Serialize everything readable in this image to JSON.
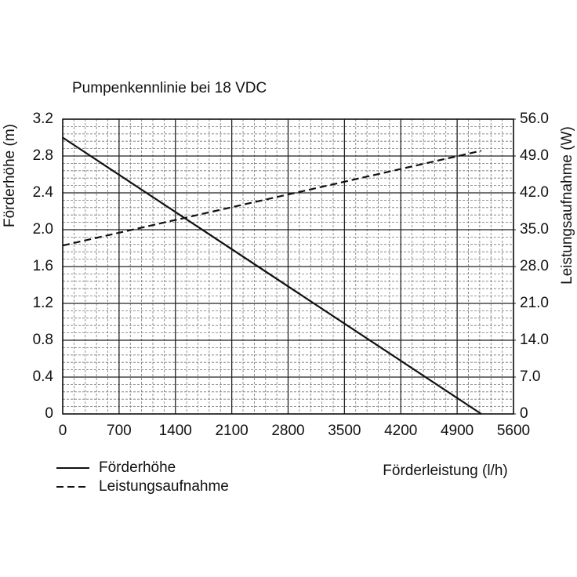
{
  "chart_data": {
    "type": "line",
    "title": "Pumpenkennlinie bei 18 VDC",
    "x_label": "Förderleistung (l/h)",
    "y_label": "Förderhöhe (m)",
    "y2_label": "Leistungsaufnahme (W)",
    "x": [
      0,
      5200
    ],
    "series": [
      {
        "name": "Förderhöhe",
        "color": "#111111",
        "dash": "solid",
        "values": [
          3.0,
          0
        ]
      },
      {
        "name": "Leistungsaufnahme",
        "color": "#111111",
        "dash": "dashed",
        "axis": "y2",
        "values": [
          32,
          50
        ]
      }
    ],
    "xlim": [
      0,
      5600
    ],
    "xticks": [
      0,
      700,
      1400,
      2100,
      2800,
      3500,
      4200,
      4900,
      5600
    ],
    "ylim": [
      0,
      3.2
    ],
    "yticks": [
      0,
      0.4,
      0.8,
      1.2,
      1.6,
      {
        "value": 2,
        "label": "2.0"
      },
      2.4,
      2.8,
      3.2
    ],
    "y2lim": [
      0,
      56
    ],
    "y2ticks": [
      0,
      {
        "value": 7,
        "label": "7.0"
      },
      {
        "value": 14,
        "label": "14.0"
      },
      {
        "value": 21,
        "label": "21.0"
      },
      {
        "value": 28,
        "label": "28.0"
      },
      {
        "value": 35,
        "label": "35.0"
      },
      {
        "value": 42,
        "label": "42.0"
      },
      {
        "value": 49,
        "label": "49.0"
      },
      {
        "value": 56,
        "label": "56.0"
      }
    ],
    "grid": true,
    "legend": "bottom-left"
  }
}
